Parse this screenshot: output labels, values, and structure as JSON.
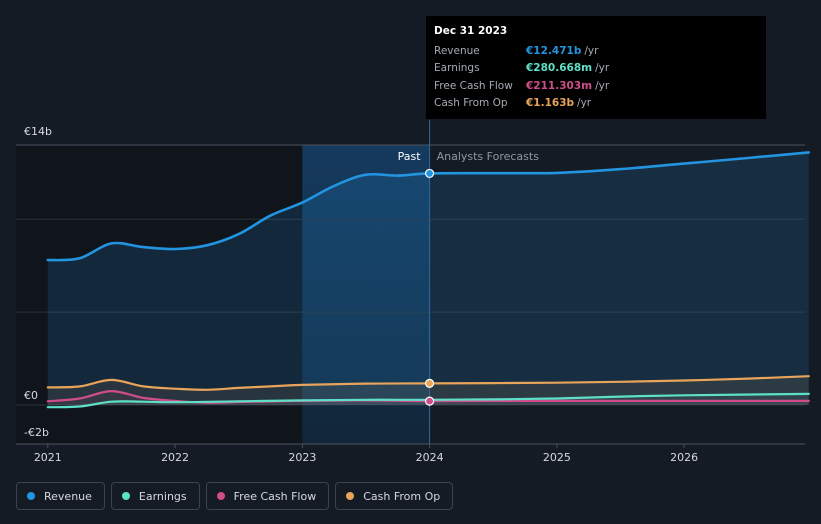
{
  "chart_data": {
    "type": "area",
    "x_ticks": [
      "2021",
      "2022",
      "2023",
      "2024",
      "2025",
      "2026"
    ],
    "y_ticks": [
      "€14b",
      "€0",
      "-€2b"
    ],
    "ylim": [
      -2,
      14
    ],
    "grid": true,
    "legend_position": "bottom-left",
    "past_label": "Past",
    "forecast_label": "Analysts Forecasts",
    "x_domain": [
      2020.75,
      2026.95
    ],
    "past_start": 2023.0,
    "divider": 2024.0,
    "series": [
      {
        "name": "Revenue",
        "color": "#2394df",
        "x": [
          2021.0,
          2021.25,
          2021.5,
          2021.75,
          2022.0,
          2022.25,
          2022.5,
          2022.75,
          2023.0,
          2023.25,
          2023.5,
          2023.75,
          2024.0,
          2024.5,
          2025.0,
          2025.5,
          2026.0,
          2026.5,
          2026.98
        ],
        "y": [
          7.8,
          7.9,
          8.7,
          8.5,
          8.4,
          8.6,
          9.2,
          10.2,
          10.9,
          11.8,
          12.4,
          12.35,
          12.47,
          12.48,
          12.5,
          12.7,
          13.0,
          13.3,
          13.6
        ]
      },
      {
        "name": "Earnings",
        "color": "#5ee0c8",
        "x": [
          2021.0,
          2021.25,
          2021.5,
          2021.75,
          2022.0,
          2022.5,
          2023.0,
          2023.5,
          2024.0,
          2024.5,
          2025.0,
          2025.5,
          2026.0,
          2026.98
        ],
        "y": [
          -0.12,
          -0.08,
          0.18,
          0.18,
          0.15,
          0.2,
          0.25,
          0.28,
          0.28,
          0.3,
          0.35,
          0.45,
          0.52,
          0.6
        ]
      },
      {
        "name": "Free Cash Flow",
        "color": "#d04d8c",
        "x": [
          2021.0,
          2021.25,
          2021.5,
          2021.75,
          2022.0,
          2022.25,
          2022.5,
          2023.0,
          2023.5,
          2024.0,
          2024.5,
          2025.0,
          2026.0,
          2026.98
        ],
        "y": [
          0.2,
          0.35,
          0.75,
          0.38,
          0.22,
          0.12,
          0.16,
          0.22,
          0.25,
          0.21,
          0.22,
          0.22,
          0.22,
          0.22
        ]
      },
      {
        "name": "Cash From Op",
        "color": "#e9a45b",
        "x": [
          2021.0,
          2021.25,
          2021.5,
          2021.75,
          2022.0,
          2022.25,
          2022.5,
          2022.75,
          2023.0,
          2023.5,
          2024.0,
          2024.5,
          2025.0,
          2025.5,
          2026.0,
          2026.5,
          2026.98
        ],
        "y": [
          0.95,
          1.0,
          1.35,
          1.0,
          0.88,
          0.82,
          0.92,
          1.0,
          1.08,
          1.15,
          1.163,
          1.18,
          1.2,
          1.25,
          1.32,
          1.42,
          1.55
        ]
      }
    ],
    "tooltip": {
      "date": "Dec 31 2023",
      "rows": [
        {
          "label": "Revenue",
          "value": "€12.471b",
          "unit": "/yr",
          "color": "#2394df"
        },
        {
          "label": "Earnings",
          "value": "€280.668m",
          "unit": "/yr",
          "color": "#5ee0c8"
        },
        {
          "label": "Free Cash Flow",
          "value": "€211.303m",
          "unit": "/yr",
          "color": "#d04d8c"
        },
        {
          "label": "Cash From Op",
          "value": "€1.163b",
          "unit": "/yr",
          "color": "#e9a45b"
        }
      ]
    }
  },
  "legend": [
    {
      "label": "Revenue",
      "color": "#2394df"
    },
    {
      "label": "Earnings",
      "color": "#5ee0c8"
    },
    {
      "label": "Free Cash Flow",
      "color": "#d04d8c"
    },
    {
      "label": "Cash From Op",
      "color": "#e9a45b"
    }
  ]
}
